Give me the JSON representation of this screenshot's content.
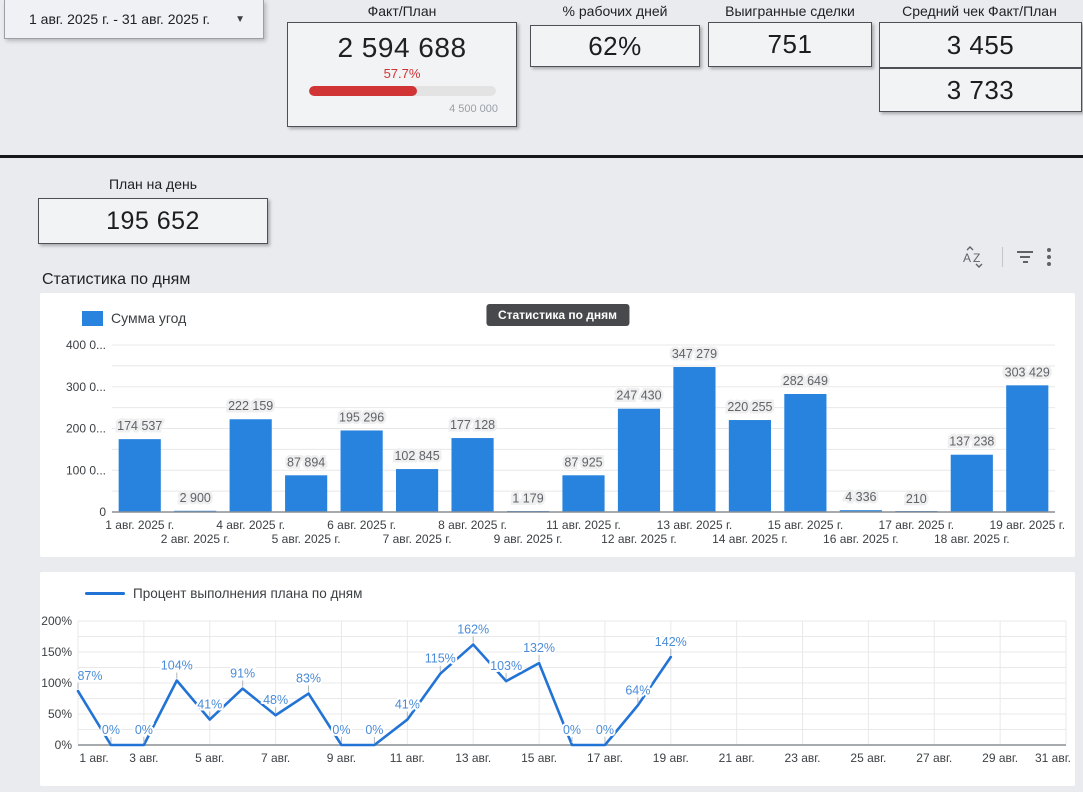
{
  "colors": {
    "accent_blue": "#2783dd",
    "line_blue": "#2273d6",
    "label_blue": "#4a8cd8",
    "red": "#d03434",
    "axis_text": "#3c4043",
    "bar_label": "#5f6368"
  },
  "date_range": {
    "label": "1 авг. 2025 г. - 31 авг. 2025 г."
  },
  "kpi": {
    "fact_plan": {
      "title": "Факт/План",
      "value": "2 594 688",
      "percent": "57.7%",
      "percent_value": 57.7,
      "target": "4 500 000"
    },
    "work_days": {
      "title": "% рабочих дней",
      "value": "62%"
    },
    "won_deals": {
      "title": "Выигранные сделки",
      "value": "751"
    },
    "avg_check": {
      "title": "Средний чек Факт/План",
      "fact": "3 455",
      "plan": "3 733"
    }
  },
  "plan_day": {
    "title": "План на день",
    "value": "195 652"
  },
  "toolbar": {
    "icons": [
      "sort-az",
      "filter",
      "more-vert"
    ]
  },
  "section": {
    "title": "Статистика по дням"
  },
  "chart_data": [
    {
      "type": "bar",
      "title": "Статистика по дням",
      "legend": "Сумма угод",
      "categories": [
        "1 авг. 2025 г.",
        "2 авг. 2025 г.",
        "4 авг. 2025 г.",
        "5 авг. 2025 г.",
        "6 авг. 2025 г.",
        "7 авг. 2025 г.",
        "8 авг. 2025 г.",
        "9 авг. 2025 г.",
        "11 авг. 2025 г.",
        "12 авг. 2025 г.",
        "13 авг. 2025 г.",
        "14 авг. 2025 г.",
        "15 авг. 2025 г.",
        "16 авг. 2025 г.",
        "17 авг. 2025 г.",
        "18 авг. 2025 г.",
        "19 авг. 2025 г."
      ],
      "values": [
        174537,
        2900,
        222159,
        87894,
        195296,
        102845,
        177128,
        1179,
        87925,
        247430,
        347279,
        220255,
        282649,
        4336,
        210,
        137238,
        303429
      ],
      "value_labels": [
        "174 537",
        "2 900",
        "222 159",
        "87 894",
        "195 296",
        "102 845",
        "177 128",
        "1 179",
        "87 925",
        "247 430",
        "347 279",
        "220 255",
        "282 649",
        "4 336",
        "210",
        "137 238",
        "303 429"
      ],
      "ylim": [
        0,
        400000
      ],
      "ytick_step": 100000,
      "ygrid_minor_step": 50000,
      "ytick_labels": [
        "0",
        "100 0...",
        "200 0...",
        "300 0...",
        "400 0..."
      ],
      "bar_color": "#2783dd",
      "grid": true,
      "legend_position": "top-left"
    },
    {
      "type": "line",
      "legend": "Процент выполнения плана по дням",
      "x": [
        1,
        2,
        3,
        4,
        5,
        6,
        7,
        8,
        9,
        10,
        11,
        12,
        13,
        14,
        15,
        16,
        17,
        18,
        19
      ],
      "values": [
        87,
        0,
        0,
        104,
        41,
        91,
        48,
        83,
        0,
        0,
        41,
        115,
        162,
        103,
        132,
        0,
        0,
        64,
        142
      ],
      "value_labels": [
        "87%",
        "0%",
        "0%",
        "104%",
        "41%",
        "91%",
        "48%",
        "83%",
        "0%",
        "0%",
        "41%",
        "115%",
        "162%",
        "103%",
        "132%",
        "0%",
        "0%",
        "64%",
        "142%"
      ],
      "xlim": [
        1,
        31
      ],
      "ylim": [
        0,
        200
      ],
      "ygrid_step": 25,
      "ytick_labels": [
        "0%",
        "50%",
        "100%",
        "150%",
        "200%"
      ],
      "xtick_labels": [
        "1 авг.",
        "3 авг.",
        "5 авг.",
        "7 авг.",
        "9 авг.",
        "11 авг.",
        "13 авг.",
        "15 авг.",
        "17 авг.",
        "19 авг.",
        "21 авг.",
        "23 авг.",
        "25 авг.",
        "27 авг.",
        "29 авг.",
        "31 авг."
      ],
      "line_color": "#2273d6",
      "grid": true,
      "legend_position": "top-left"
    }
  ]
}
